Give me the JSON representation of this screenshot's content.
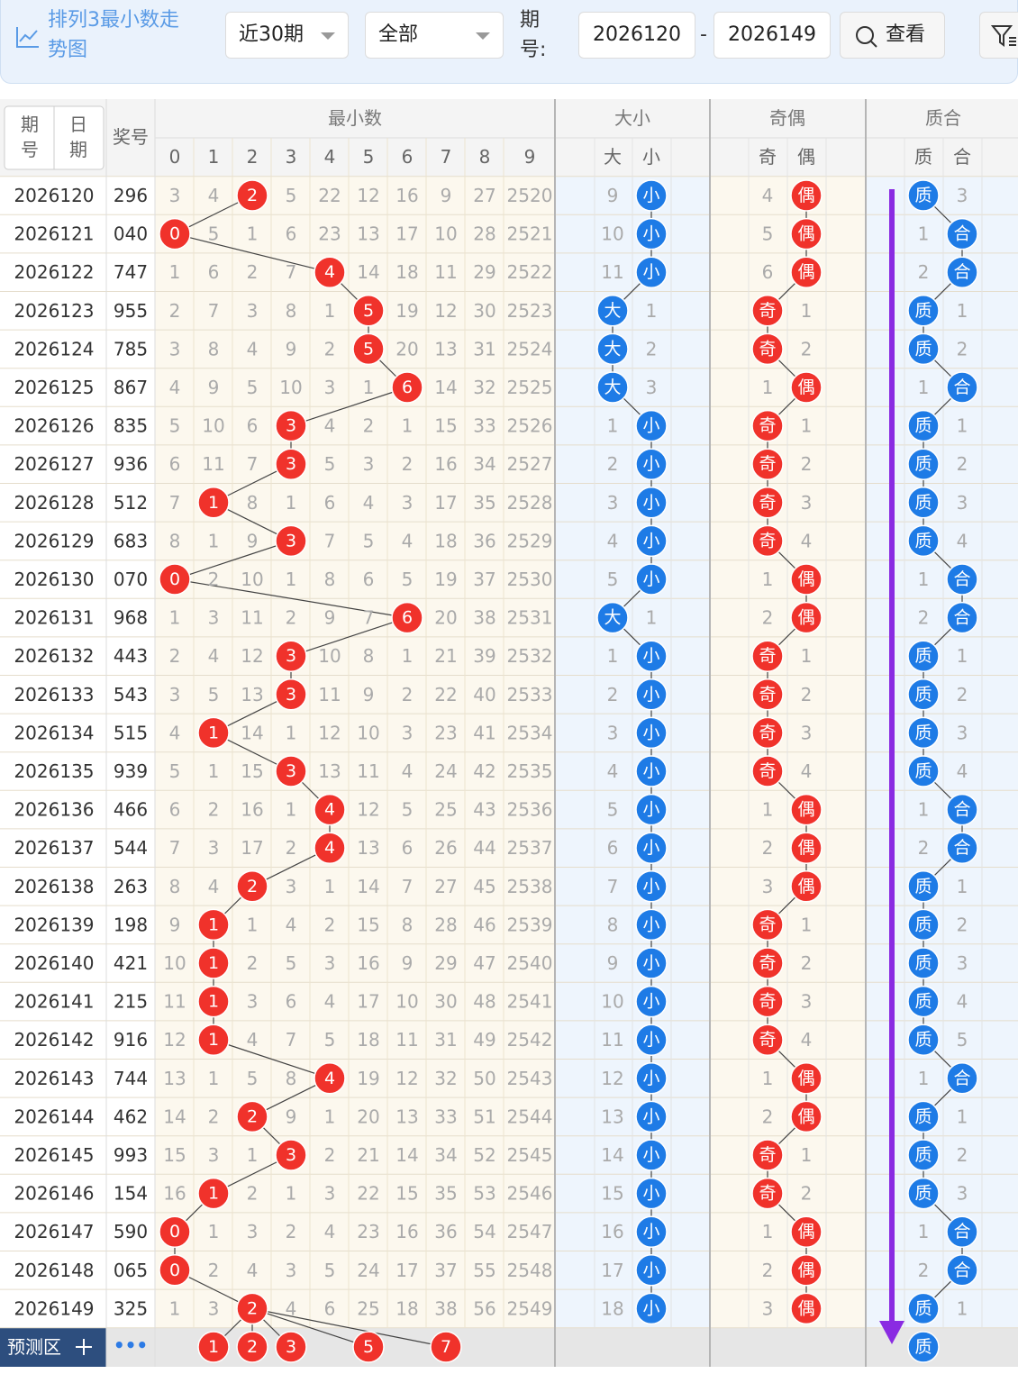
{
  "toolbar": {
    "title": "排列3最小数走势图",
    "period_select": "近30期",
    "type_select": "全部",
    "period_label": "期号:",
    "from": "2026120",
    "dash": "-",
    "to": "2026149",
    "search": "查看"
  },
  "header": {
    "period": "期号",
    "date": "日期",
    "award": "奖号",
    "min_group": "最小数",
    "min_digits": [
      0,
      1,
      2,
      3,
      4,
      5,
      6,
      7,
      8,
      9
    ],
    "size_group": "大小",
    "size_labels": [
      "大",
      "小"
    ],
    "parity_group": "奇偶",
    "parity_labels": [
      "奇",
      "偶"
    ],
    "prime_group": "质合",
    "prime_labels": [
      "质",
      "合"
    ]
  },
  "rows": [
    {
      "period": "2026120",
      "award": "296",
      "min": 2,
      "omit": [
        3,
        4,
        null,
        5,
        22,
        12,
        16,
        9,
        27,
        2520
      ],
      "size": "小",
      "size_omit": [
        9,
        null
      ],
      "parity": "偶",
      "parity_omit": [
        4,
        null
      ],
      "prime": "质",
      "prime_omit": [
        null,
        3
      ]
    },
    {
      "period": "2026121",
      "award": "040",
      "min": 0,
      "omit": [
        null,
        5,
        1,
        6,
        23,
        13,
        17,
        10,
        28,
        2521
      ],
      "size": "小",
      "size_omit": [
        10,
        null
      ],
      "parity": "偶",
      "parity_omit": [
        5,
        null
      ],
      "prime": "合",
      "prime_omit": [
        1,
        null
      ]
    },
    {
      "period": "2026122",
      "award": "747",
      "min": 4,
      "omit": [
        1,
        6,
        2,
        7,
        null,
        14,
        18,
        11,
        29,
        2522
      ],
      "size": "小",
      "size_omit": [
        11,
        null
      ],
      "parity": "偶",
      "parity_omit": [
        6,
        null
      ],
      "prime": "合",
      "prime_omit": [
        2,
        null
      ]
    },
    {
      "period": "2026123",
      "award": "955",
      "min": 5,
      "omit": [
        2,
        7,
        3,
        8,
        1,
        null,
        19,
        12,
        30,
        2523
      ],
      "size": "大",
      "size_omit": [
        null,
        1
      ],
      "parity": "奇",
      "parity_omit": [
        null,
        1
      ],
      "prime": "质",
      "prime_omit": [
        null,
        1
      ]
    },
    {
      "period": "2026124",
      "award": "785",
      "min": 5,
      "omit": [
        3,
        8,
        4,
        9,
        2,
        null,
        20,
        13,
        31,
        2524
      ],
      "size": "大",
      "size_omit": [
        null,
        2
      ],
      "parity": "奇",
      "parity_omit": [
        null,
        2
      ],
      "prime": "质",
      "prime_omit": [
        null,
        2
      ]
    },
    {
      "period": "2026125",
      "award": "867",
      "min": 6,
      "omit": [
        4,
        9,
        5,
        10,
        3,
        1,
        null,
        14,
        32,
        2525
      ],
      "size": "大",
      "size_omit": [
        null,
        3
      ],
      "parity": "偶",
      "parity_omit": [
        1,
        null
      ],
      "prime": "合",
      "prime_omit": [
        1,
        null
      ]
    },
    {
      "period": "2026126",
      "award": "835",
      "min": 3,
      "omit": [
        5,
        10,
        6,
        null,
        4,
        2,
        1,
        15,
        33,
        2526
      ],
      "size": "小",
      "size_omit": [
        1,
        null
      ],
      "parity": "奇",
      "parity_omit": [
        null,
        1
      ],
      "prime": "质",
      "prime_omit": [
        null,
        1
      ]
    },
    {
      "period": "2026127",
      "award": "936",
      "min": 3,
      "omit": [
        6,
        11,
        7,
        null,
        5,
        3,
        2,
        16,
        34,
        2527
      ],
      "size": "小",
      "size_omit": [
        2,
        null
      ],
      "parity": "奇",
      "parity_omit": [
        null,
        2
      ],
      "prime": "质",
      "prime_omit": [
        null,
        2
      ]
    },
    {
      "period": "2026128",
      "award": "512",
      "min": 1,
      "omit": [
        7,
        null,
        8,
        1,
        6,
        4,
        3,
        17,
        35,
        2528
      ],
      "size": "小",
      "size_omit": [
        3,
        null
      ],
      "parity": "奇",
      "parity_omit": [
        null,
        3
      ],
      "prime": "质",
      "prime_omit": [
        null,
        3
      ]
    },
    {
      "period": "2026129",
      "award": "683",
      "min": 3,
      "omit": [
        8,
        1,
        9,
        null,
        7,
        5,
        4,
        18,
        36,
        2529
      ],
      "size": "小",
      "size_omit": [
        4,
        null
      ],
      "parity": "奇",
      "parity_omit": [
        null,
        4
      ],
      "prime": "质",
      "prime_omit": [
        null,
        4
      ]
    },
    {
      "period": "2026130",
      "award": "070",
      "min": 0,
      "omit": [
        null,
        2,
        10,
        1,
        8,
        6,
        5,
        19,
        37,
        2530
      ],
      "size": "小",
      "size_omit": [
        5,
        null
      ],
      "parity": "偶",
      "parity_omit": [
        1,
        null
      ],
      "prime": "合",
      "prime_omit": [
        1,
        null
      ]
    },
    {
      "period": "2026131",
      "award": "968",
      "min": 6,
      "omit": [
        1,
        3,
        11,
        2,
        9,
        7,
        null,
        20,
        38,
        2531
      ],
      "size": "大",
      "size_omit": [
        null,
        1
      ],
      "parity": "偶",
      "parity_omit": [
        2,
        null
      ],
      "prime": "合",
      "prime_omit": [
        2,
        null
      ]
    },
    {
      "period": "2026132",
      "award": "443",
      "min": 3,
      "omit": [
        2,
        4,
        12,
        null,
        10,
        8,
        1,
        21,
        39,
        2532
      ],
      "size": "小",
      "size_omit": [
        1,
        null
      ],
      "parity": "奇",
      "parity_omit": [
        null,
        1
      ],
      "prime": "质",
      "prime_omit": [
        null,
        1
      ]
    },
    {
      "period": "2026133",
      "award": "543",
      "min": 3,
      "omit": [
        3,
        5,
        13,
        null,
        11,
        9,
        2,
        22,
        40,
        2533
      ],
      "size": "小",
      "size_omit": [
        2,
        null
      ],
      "parity": "奇",
      "parity_omit": [
        null,
        2
      ],
      "prime": "质",
      "prime_omit": [
        null,
        2
      ]
    },
    {
      "period": "2026134",
      "award": "515",
      "min": 1,
      "omit": [
        4,
        null,
        14,
        1,
        12,
        10,
        3,
        23,
        41,
        2534
      ],
      "size": "小",
      "size_omit": [
        3,
        null
      ],
      "parity": "奇",
      "parity_omit": [
        null,
        3
      ],
      "prime": "质",
      "prime_omit": [
        null,
        3
      ]
    },
    {
      "period": "2026135",
      "award": "939",
      "min": 3,
      "omit": [
        5,
        1,
        15,
        null,
        13,
        11,
        4,
        24,
        42,
        2535
      ],
      "size": "小",
      "size_omit": [
        4,
        null
      ],
      "parity": "奇",
      "parity_omit": [
        null,
        4
      ],
      "prime": "质",
      "prime_omit": [
        null,
        4
      ]
    },
    {
      "period": "2026136",
      "award": "466",
      "min": 4,
      "omit": [
        6,
        2,
        16,
        1,
        null,
        12,
        5,
        25,
        43,
        2536
      ],
      "size": "小",
      "size_omit": [
        5,
        null
      ],
      "parity": "偶",
      "parity_omit": [
        1,
        null
      ],
      "prime": "合",
      "prime_omit": [
        1,
        null
      ]
    },
    {
      "period": "2026137",
      "award": "544",
      "min": 4,
      "omit": [
        7,
        3,
        17,
        2,
        null,
        13,
        6,
        26,
        44,
        2537
      ],
      "size": "小",
      "size_omit": [
        6,
        null
      ],
      "parity": "偶",
      "parity_omit": [
        2,
        null
      ],
      "prime": "合",
      "prime_omit": [
        2,
        null
      ]
    },
    {
      "period": "2026138",
      "award": "263",
      "min": 2,
      "omit": [
        8,
        4,
        null,
        3,
        1,
        14,
        7,
        27,
        45,
        2538
      ],
      "size": "小",
      "size_omit": [
        7,
        null
      ],
      "parity": "偶",
      "parity_omit": [
        3,
        null
      ],
      "prime": "质",
      "prime_omit": [
        null,
        1
      ]
    },
    {
      "period": "2026139",
      "award": "198",
      "min": 1,
      "omit": [
        9,
        null,
        1,
        4,
        2,
        15,
        8,
        28,
        46,
        2539
      ],
      "size": "小",
      "size_omit": [
        8,
        null
      ],
      "parity": "奇",
      "parity_omit": [
        null,
        1
      ],
      "prime": "质",
      "prime_omit": [
        null,
        2
      ]
    },
    {
      "period": "2026140",
      "award": "421",
      "min": 1,
      "omit": [
        10,
        null,
        2,
        5,
        3,
        16,
        9,
        29,
        47,
        2540
      ],
      "size": "小",
      "size_omit": [
        9,
        null
      ],
      "parity": "奇",
      "parity_omit": [
        null,
        2
      ],
      "prime": "质",
      "prime_omit": [
        null,
        3
      ]
    },
    {
      "period": "2026141",
      "award": "215",
      "min": 1,
      "omit": [
        11,
        null,
        3,
        6,
        4,
        17,
        10,
        30,
        48,
        2541
      ],
      "size": "小",
      "size_omit": [
        10,
        null
      ],
      "parity": "奇",
      "parity_omit": [
        null,
        3
      ],
      "prime": "质",
      "prime_omit": [
        null,
        4
      ]
    },
    {
      "period": "2026142",
      "award": "916",
      "min": 1,
      "omit": [
        12,
        null,
        4,
        7,
        5,
        18,
        11,
        31,
        49,
        2542
      ],
      "size": "小",
      "size_omit": [
        11,
        null
      ],
      "parity": "奇",
      "parity_omit": [
        null,
        4
      ],
      "prime": "质",
      "prime_omit": [
        null,
        5
      ]
    },
    {
      "period": "2026143",
      "award": "744",
      "min": 4,
      "omit": [
        13,
        1,
        5,
        8,
        null,
        19,
        12,
        32,
        50,
        2543
      ],
      "size": "小",
      "size_omit": [
        12,
        null
      ],
      "parity": "偶",
      "parity_omit": [
        1,
        null
      ],
      "prime": "合",
      "prime_omit": [
        1,
        null
      ]
    },
    {
      "period": "2026144",
      "award": "462",
      "min": 2,
      "omit": [
        14,
        2,
        null,
        9,
        1,
        20,
        13,
        33,
        51,
        2544
      ],
      "size": "小",
      "size_omit": [
        13,
        null
      ],
      "parity": "偶",
      "parity_omit": [
        2,
        null
      ],
      "prime": "质",
      "prime_omit": [
        null,
        1
      ]
    },
    {
      "period": "2026145",
      "award": "993",
      "min": 3,
      "omit": [
        15,
        3,
        1,
        null,
        2,
        21,
        14,
        34,
        52,
        2545
      ],
      "size": "小",
      "size_omit": [
        14,
        null
      ],
      "parity": "奇",
      "parity_omit": [
        null,
        1
      ],
      "prime": "质",
      "prime_omit": [
        null,
        2
      ]
    },
    {
      "period": "2026146",
      "award": "154",
      "min": 1,
      "omit": [
        16,
        null,
        2,
        1,
        3,
        22,
        15,
        35,
        53,
        2546
      ],
      "size": "小",
      "size_omit": [
        15,
        null
      ],
      "parity": "奇",
      "parity_omit": [
        null,
        2
      ],
      "prime": "质",
      "prime_omit": [
        null,
        3
      ]
    },
    {
      "period": "2026147",
      "award": "590",
      "min": 0,
      "omit": [
        null,
        1,
        3,
        2,
        4,
        23,
        16,
        36,
        54,
        2547
      ],
      "size": "小",
      "size_omit": [
        16,
        null
      ],
      "parity": "偶",
      "parity_omit": [
        1,
        null
      ],
      "prime": "合",
      "prime_omit": [
        1,
        null
      ]
    },
    {
      "period": "2026148",
      "award": "065",
      "min": 0,
      "omit": [
        null,
        2,
        4,
        3,
        5,
        24,
        17,
        37,
        55,
        2548
      ],
      "size": "小",
      "size_omit": [
        17,
        null
      ],
      "parity": "偶",
      "parity_omit": [
        2,
        null
      ],
      "prime": "合",
      "prime_omit": [
        2,
        null
      ]
    },
    {
      "period": "2026149",
      "award": "325",
      "min": 2,
      "omit": [
        1,
        3,
        null,
        4,
        6,
        25,
        18,
        38,
        56,
        2549
      ],
      "size": "小",
      "size_omit": [
        18,
        null
      ],
      "parity": "偶",
      "parity_omit": [
        3,
        null
      ],
      "prime": "质",
      "prime_omit": [
        null,
        1
      ]
    }
  ],
  "predict": {
    "label": "预测区",
    "more": "•••",
    "digits": [
      1,
      2,
      3,
      5,
      7
    ],
    "prime": "质"
  }
}
